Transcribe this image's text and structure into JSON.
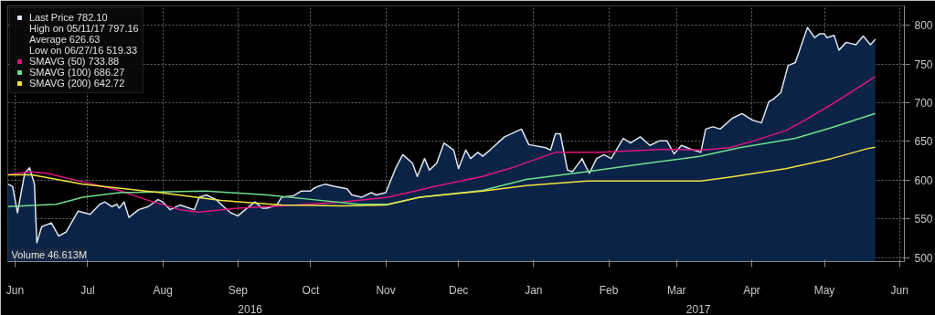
{
  "chart_data": {
    "type": "line",
    "x": [
      "2016-06-15",
      "2016-06-17",
      "2016-06-19",
      "2016-06-22",
      "2016-06-24",
      "2016-06-26",
      "2016-06-27",
      "2016-06-29",
      "2016-07-03",
      "2016-07-06",
      "2016-07-09",
      "2016-07-14",
      "2016-07-19",
      "2016-07-23",
      "2016-07-25",
      "2016-07-28",
      "2016-07-30",
      "2016-07-31",
      "2016-08-02",
      "2016-08-04",
      "2016-08-08",
      "2016-08-12",
      "2016-08-16",
      "2016-08-18",
      "2016-08-21",
      "2016-08-25",
      "2016-08-29",
      "2016-08-31",
      "2016-09-02",
      "2016-09-05",
      "2016-09-09",
      "2016-09-12",
      "2016-09-15",
      "2016-09-18",
      "2016-09-21",
      "2016-09-25",
      "2016-09-28",
      "2016-09-30",
      "2016-10-04",
      "2016-10-06",
      "2016-10-11",
      "2016-10-14",
      "2016-10-18",
      "2016-10-19",
      "2016-10-21",
      "2016-10-24",
      "2016-10-28",
      "2016-11-02",
      "2016-11-04",
      "2016-11-08",
      "2016-11-12",
      "2016-11-14",
      "2016-11-18",
      "2016-11-22",
      "2016-11-25",
      "2016-11-29",
      "2016-12-01",
      "2016-12-04",
      "2016-12-06",
      "2016-12-09",
      "2016-12-12",
      "2016-12-16",
      "2016-12-18",
      "2016-12-21",
      "2016-12-23",
      "2016-12-26",
      "2016-12-28",
      "2016-12-31",
      "2017-01-06",
      "2017-01-13",
      "2017-01-16",
      "2017-01-23",
      "2017-01-25",
      "2017-01-27",
      "2017-01-29",
      "2017-02-01",
      "2017-02-03",
      "2017-02-07",
      "2017-02-08",
      "2017-02-10",
      "2017-02-13",
      "2017-02-16",
      "2017-02-19",
      "2017-02-24",
      "2017-02-27",
      "2017-03-03",
      "2017-03-07",
      "2017-03-11",
      "2017-03-14",
      "2017-03-17",
      "2017-03-20",
      "2017-03-24",
      "2017-03-28",
      "2017-03-30",
      "2017-04-02",
      "2017-04-05",
      "2017-04-10",
      "2017-04-14",
      "2017-04-18",
      "2017-04-22",
      "2017-04-25",
      "2017-04-27",
      "2017-04-30",
      "2017-05-03",
      "2017-05-06",
      "2017-05-11",
      "2017-05-14",
      "2017-05-16",
      "2017-05-18",
      "2017-05-19",
      "2017-05-22",
      "2017-05-24",
      "2017-05-27",
      "2017-05-31",
      "2017-06-03",
      "2017-06-06",
      "2017-06-08"
    ],
    "series": [
      {
        "name": "Last Price 782.10",
        "type": "area",
        "color": "#dfe6ef",
        "values": [
          595,
          592,
          558,
          609,
          616,
          595,
          519.33,
          540,
          545,
          528,
          533,
          560,
          556,
          569,
          572,
          566,
          569,
          564,
          572,
          552,
          562,
          566,
          575,
          572,
          562,
          568,
          564,
          562,
          578,
          581,
          575,
          566,
          558,
          554,
          562,
          572,
          564,
          564,
          568,
          578,
          580,
          586,
          586,
          589,
          592,
          595,
          592,
          589,
          581,
          578,
          584,
          581,
          584,
          615,
          633,
          622,
          605,
          628,
          613,
          622,
          648,
          639,
          615,
          639,
          628,
          636,
          631,
          639,
          656,
          666,
          646,
          642,
          639,
          660,
          660,
          613,
          611,
          628,
          621,
          609,
          628,
          633,
          628,
          654,
          648,
          656,
          645,
          651,
          651,
          634,
          645,
          640,
          636,
          666,
          669,
          666,
          680,
          686,
          678,
          674,
          701,
          705,
          713,
          748,
          752,
          797.16,
          784,
          789,
          789,
          784,
          787,
          768,
          778,
          775,
          786,
          775,
          782.1
        ]
      },
      {
        "name": "SMAVG (50) 733.88",
        "color": "#e0147f",
        "x": [
          "2016-06-15",
          "2016-06-24",
          "2016-07-01",
          "2016-07-16",
          "2016-07-31",
          "2016-08-11",
          "2016-08-25",
          "2016-09-02",
          "2016-09-18",
          "2016-10-06",
          "2016-10-31",
          "2016-11-19",
          "2016-12-08",
          "2016-12-28",
          "2017-01-09",
          "2017-01-27",
          "2017-02-15",
          "2017-03-13",
          "2017-03-29",
          "2017-04-09",
          "2017-04-19",
          "2017-05-02",
          "2017-05-08",
          "2017-05-21",
          "2017-06-08"
        ],
        "values": [
          607,
          611,
          609,
          598,
          587,
          575,
          562,
          559,
          564,
          567,
          572,
          578,
          592,
          605,
          616,
          636,
          636,
          640,
          639,
          642,
          651,
          664,
          674,
          698,
          733.88
        ]
      },
      {
        "name": "SMAVG (100) 686.27",
        "color": "#6fe08a",
        "x": [
          "2016-06-15",
          "2016-07-05",
          "2016-07-16",
          "2016-07-31",
          "2016-09-05",
          "2016-09-30",
          "2016-10-19",
          "2016-11-07",
          "2016-11-19",
          "2016-12-02",
          "2016-12-28",
          "2017-01-15",
          "2017-02-09",
          "2017-03-06",
          "2017-03-28",
          "2017-04-13",
          "2017-05-06",
          "2017-05-21",
          "2017-06-08"
        ],
        "values": [
          566,
          569,
          578,
          584,
          586,
          581,
          575,
          569,
          569,
          578,
          587,
          601,
          611,
          622,
          631,
          642,
          654,
          668,
          686.27
        ]
      },
      {
        "name": "SMAVG (200) 642.72",
        "color": "#f0e442",
        "x": [
          "2016-06-15",
          "2016-06-25",
          "2016-07-16",
          "2016-08-17",
          "2016-09-11",
          "2016-10-06",
          "2016-10-31",
          "2016-11-18",
          "2016-12-02",
          "2016-12-28",
          "2017-01-15",
          "2017-02-09",
          "2017-03-06",
          "2017-03-28",
          "2017-04-09",
          "2017-05-02",
          "2017-05-21",
          "2017-06-05",
          "2017-06-08"
        ],
        "values": [
          607,
          607,
          595,
          584,
          574,
          568,
          567,
          568,
          578,
          586,
          593,
          599,
          599,
          599,
          604,
          615,
          628,
          641,
          642.72
        ]
      }
    ],
    "xlim": [
      "2016-06-15",
      "2017-06-20"
    ],
    "xticks": [
      {
        "value": "2016-06-18",
        "label": "Jun"
      },
      {
        "value": "2016-07-18",
        "label": "Jul"
      },
      {
        "value": "2016-08-18",
        "label": "Aug"
      },
      {
        "value": "2016-09-18",
        "label": "Sep"
      },
      {
        "value": "2016-10-18",
        "label": "Oct"
      },
      {
        "value": "2016-11-18",
        "label": "Nov"
      },
      {
        "value": "2016-12-18",
        "label": "Dec"
      },
      {
        "value": "2017-01-18",
        "label": "Jan"
      },
      {
        "value": "2017-02-18",
        "label": "Feb"
      },
      {
        "value": "2017-03-18",
        "label": "Mar"
      },
      {
        "value": "2017-04-18",
        "label": "Apr"
      },
      {
        "value": "2017-05-18",
        "label": "May"
      },
      {
        "value": "2017-06-18",
        "label": "Jun"
      }
    ],
    "ylim": [
      495,
      825
    ],
    "yticks": [
      500,
      550,
      600,
      650,
      700,
      750,
      800
    ],
    "grid": true,
    "legend": "top left",
    "annotations": [
      "High on 05/11/17 797.16",
      "Average 626.63",
      "Low on 06/27/16 519.33",
      "Volume 46.613M",
      "2016",
      "2017"
    ]
  }
}
